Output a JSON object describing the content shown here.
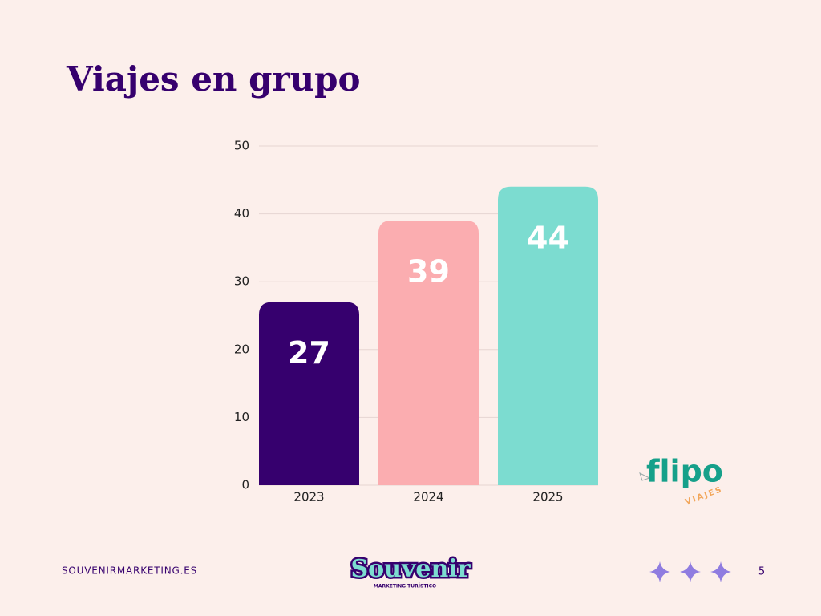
{
  "chart_data": {
    "type": "bar",
    "title": "Viajes en grupo",
    "categories": [
      "2023",
      "2024",
      "2025"
    ],
    "values": [
      27,
      39,
      44
    ],
    "colors": [
      "#36006e",
      "#fbadb0",
      "#7cdcd0"
    ],
    "ylim": [
      0,
      50
    ],
    "yticks": [
      0,
      10,
      20,
      30,
      40,
      50
    ],
    "grid": true
  },
  "footer": {
    "website": "SOUVENIRMARKETING.ES",
    "page_number": "5"
  },
  "logos": {
    "flipo": "flipo",
    "flipo_sub": "VIAJES",
    "souvenir": "Souvenir",
    "souvenir_sub": "MARKETING TURÍSTICO"
  }
}
